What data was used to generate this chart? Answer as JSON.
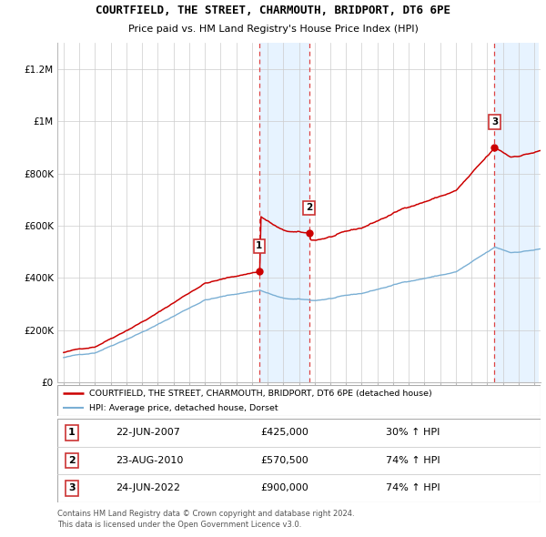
{
  "title": "COURTFIELD, THE STREET, CHARMOUTH, BRIDPORT, DT6 6PE",
  "subtitle": "Price paid vs. HM Land Registry's House Price Index (HPI)",
  "sale_info": [
    {
      "label": "1",
      "date": "22-JUN-2007",
      "price": "£425,000",
      "hpi": "30% ↑ HPI"
    },
    {
      "label": "2",
      "date": "23-AUG-2010",
      "price": "£570,500",
      "hpi": "74% ↑ HPI"
    },
    {
      "label": "3",
      "date": "24-JUN-2022",
      "price": "£900,000",
      "hpi": "74% ↑ HPI"
    }
  ],
  "sale_years": [
    2007.47,
    2010.64,
    2022.47
  ],
  "sale_prices": [
    425000,
    570500,
    900000
  ],
  "hpi_legend": "HPI: Average price, detached house, Dorset",
  "property_legend": "COURTFIELD, THE STREET, CHARMOUTH, BRIDPORT, DT6 6PE (detached house)",
  "footer1": "Contains HM Land Registry data © Crown copyright and database right 2024.",
  "footer2": "This data is licensed under the Open Government Licence v3.0.",
  "line_color_property": "#cc0000",
  "line_color_hpi": "#7aafd4",
  "shading_color": "#ddeeff",
  "ytick_labels": [
    "£0",
    "£200K",
    "£400K",
    "£600K",
    "£800K",
    "£1M",
    "£1.2M"
  ],
  "yticks": [
    0,
    200000,
    400000,
    600000,
    800000,
    1000000,
    1200000
  ]
}
